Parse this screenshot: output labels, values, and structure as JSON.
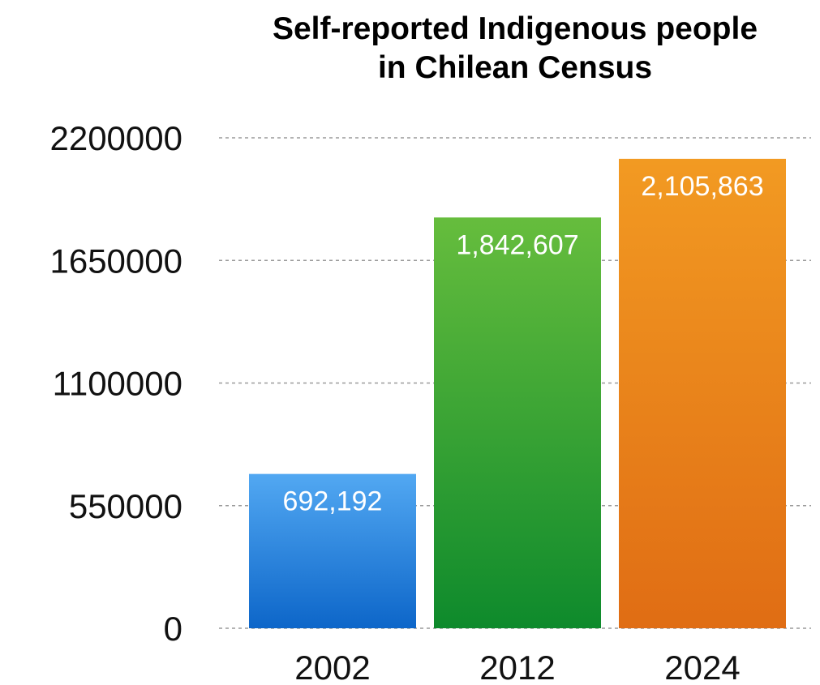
{
  "chart_data": {
    "type": "bar",
    "title_lines": [
      "Self-reported Indigenous people",
      "in Chilean Census"
    ],
    "categories": [
      "2002",
      "2012",
      "2024"
    ],
    "values": [
      692192,
      1842607,
      2105863
    ],
    "data_labels": [
      "692,192",
      "1,842,607",
      "2,105,863"
    ],
    "y_ticks": [
      0,
      550000,
      1100000,
      1650000,
      2200000
    ],
    "ylim": [
      0,
      2200000
    ],
    "grid": true,
    "colors": [
      {
        "top": "#52a8f2",
        "bottom": "#0d66c9"
      },
      {
        "top": "#66bd3d",
        "bottom": "#0e8a2c"
      },
      {
        "top": "#f29a22",
        "bottom": "#e06d14"
      }
    ]
  }
}
